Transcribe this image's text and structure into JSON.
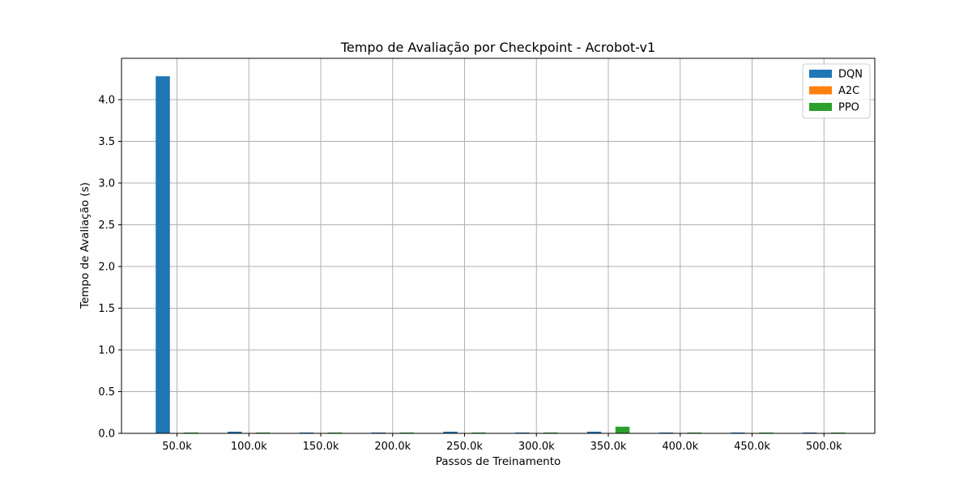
{
  "chart_data": {
    "type": "bar",
    "title": "Tempo de Avaliação por Checkpoint - Acrobot-v1",
    "xlabel": "Passos de Treinamento",
    "ylabel": "Tempo de Avaliação (s)",
    "categories": [
      "50.0k",
      "100.0k",
      "150.0k",
      "200.0k",
      "250.0k",
      "300.0k",
      "350.0k",
      "400.0k",
      "450.0k",
      "500.0k"
    ],
    "series": [
      {
        "name": "DQN",
        "color": "#1f77b4",
        "values": [
          4.28,
          0.02,
          0.01,
          0.01,
          0.02,
          0.01,
          0.02,
          0.01,
          0.01,
          0.01
        ]
      },
      {
        "name": "A2C",
        "color": "#ff7f0e",
        "values": [
          0.005,
          0.005,
          0.005,
          0.005,
          0.005,
          0.005,
          0.005,
          0.005,
          0.005,
          0.005
        ]
      },
      {
        "name": "PPO",
        "color": "#2ca02c",
        "values": [
          0.01,
          0.01,
          0.01,
          0.01,
          0.01,
          0.01,
          0.08,
          0.01,
          0.01,
          0.01
        ]
      }
    ],
    "ylim": [
      0,
      4.5
    ],
    "yticks": [
      "0.0",
      "0.5",
      "1.0",
      "1.5",
      "2.0",
      "2.5",
      "3.0",
      "3.5",
      "4.0"
    ],
    "grid": true,
    "legend_position": "top-right"
  }
}
